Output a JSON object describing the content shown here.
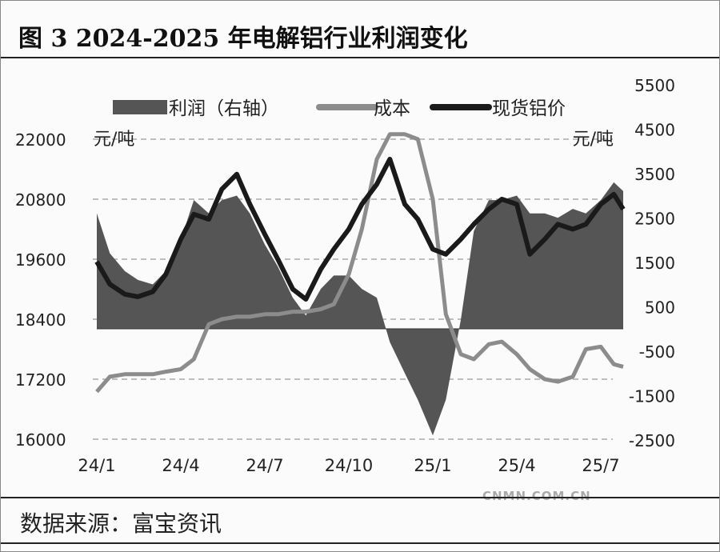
{
  "title": "图 3 2024-2025 年电解铝行业利润变化",
  "source": "数据来源：富宝资讯",
  "watermark": "CNMN.COM.CN",
  "chart_data": {
    "type": "line",
    "left_unit": "元/吨",
    "right_unit": "元/吨",
    "left_ticks": [
      "22000",
      "20800",
      "19600",
      "18400",
      "17200",
      "16000"
    ],
    "right_ticks": [
      "5500",
      "4500",
      "3500",
      "2500",
      "1500",
      "500",
      "-500",
      "-1500",
      "-2500"
    ],
    "x_ticks": [
      "24/1",
      "24/4",
      "24/7",
      "24/10",
      "25/1",
      "25/4",
      "25/7"
    ],
    "left_ylim": [
      16000,
      23070
    ],
    "right_ylim": [
      -2500,
      5500
    ],
    "grid": "horizontal dashed",
    "legend_position": "top",
    "x": [
      "2024-01-01",
      "2024-01-15",
      "2024-02-01",
      "2024-02-15",
      "2024-03-01",
      "2024-03-15",
      "2024-04-01",
      "2024-04-15",
      "2024-05-01",
      "2024-05-15",
      "2024-06-01",
      "2024-06-15",
      "2024-07-01",
      "2024-07-15",
      "2024-08-01",
      "2024-08-15",
      "2024-09-01",
      "2024-09-15",
      "2024-10-01",
      "2024-10-15",
      "2024-11-01",
      "2024-11-15",
      "2024-12-01",
      "2024-12-15",
      "2025-01-01",
      "2025-01-15",
      "2025-02-01",
      "2025-02-15",
      "2025-03-01",
      "2025-03-15",
      "2025-04-01",
      "2025-04-15",
      "2025-05-01",
      "2025-05-15",
      "2025-06-01",
      "2025-06-15",
      "2025-07-01",
      "2025-07-15",
      "2025-07-25"
    ],
    "series": [
      {
        "name": "利润（右轴）",
        "kind": "area",
        "axis": "right",
        "color": "#555555",
        "values": [
          2600,
          1700,
          1300,
          1100,
          1000,
          1300,
          2000,
          2900,
          2600,
          2900,
          3000,
          2600,
          1900,
          1400,
          700,
          300,
          900,
          1200,
          1200,
          900,
          700,
          -300,
          -1000,
          -1600,
          -2400,
          -1600,
          200,
          2200,
          2900,
          2900,
          3000,
          2600,
          2600,
          2500,
          2700,
          2600,
          2900,
          3300,
          3100
        ]
      },
      {
        "name": "成本",
        "kind": "line",
        "axis": "left",
        "color": "#8c8c8c",
        "values": [
          16950,
          17250,
          17300,
          17300,
          17300,
          17350,
          17400,
          17600,
          18300,
          18400,
          18450,
          18450,
          18500,
          18500,
          18550,
          18550,
          18600,
          18700,
          19300,
          20200,
          21600,
          22100,
          22100,
          22000,
          20800,
          18500,
          17700,
          17600,
          17900,
          17950,
          17700,
          17400,
          17200,
          17150,
          17250,
          17800,
          17850,
          17500,
          17450
        ]
      },
      {
        "name": "现货铝价",
        "kind": "line",
        "axis": "left",
        "color": "#1a1a1a",
        "values": [
          19550,
          19100,
          18900,
          18850,
          18950,
          19300,
          20000,
          20500,
          20400,
          21000,
          21300,
          20700,
          20100,
          19600,
          19000,
          18800,
          19400,
          19800,
          20200,
          20700,
          21100,
          21600,
          20700,
          20400,
          19800,
          19700,
          20000,
          20300,
          20600,
          20800,
          20700,
          19700,
          20000,
          20300,
          20200,
          20300,
          20700,
          20900,
          20600
        ]
      }
    ]
  }
}
